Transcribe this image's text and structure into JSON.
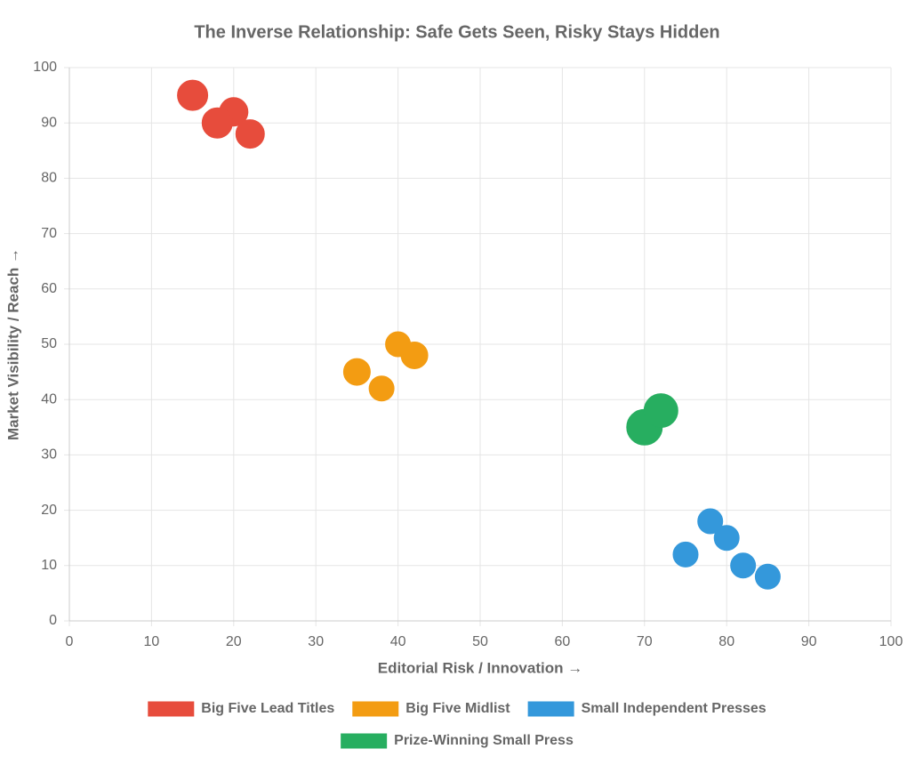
{
  "chart_data": {
    "type": "bubble",
    "title": "The Inverse Relationship: Safe Gets Seen, Risky Stays Hidden",
    "x_label": "Editorial Risk / Innovation →",
    "y_label": "Market Visibility / Reach →",
    "xlim": [
      0,
      100
    ],
    "xticks": [
      0,
      10,
      20,
      30,
      40,
      50,
      60,
      70,
      80,
      90,
      100
    ],
    "ylim": [
      0,
      100
    ],
    "yticks": [
      0,
      10,
      20,
      30,
      40,
      50,
      60,
      70,
      80,
      90,
      100
    ],
    "grid": true,
    "legend": "bottom",
    "series": [
      {
        "name": "Big Five Lead Titles",
        "color": "#e74c3c",
        "x": [
          15,
          20,
          18,
          22
        ],
        "values": [
          95,
          92,
          90,
          88
        ],
        "sizes": [
          17,
          16,
          17,
          16
        ]
      },
      {
        "name": "Big Five Midlist",
        "color": "#f39c12",
        "x": [
          35,
          40,
          38,
          42
        ],
        "values": [
          45,
          50,
          42,
          48
        ],
        "sizes": [
          15,
          14,
          14,
          15
        ]
      },
      {
        "name": "Small Independent Presses",
        "color": "#3498db",
        "x": [
          75,
          80,
          78,
          85,
          82
        ],
        "values": [
          12,
          15,
          18,
          8,
          10
        ],
        "sizes": [
          14,
          14,
          14,
          14,
          14
        ]
      },
      {
        "name": "Prize-Winning Small Press",
        "color": "#27ae60",
        "x": [
          70,
          72
        ],
        "values": [
          35,
          38
        ],
        "sizes": [
          20,
          19
        ]
      }
    ]
  }
}
